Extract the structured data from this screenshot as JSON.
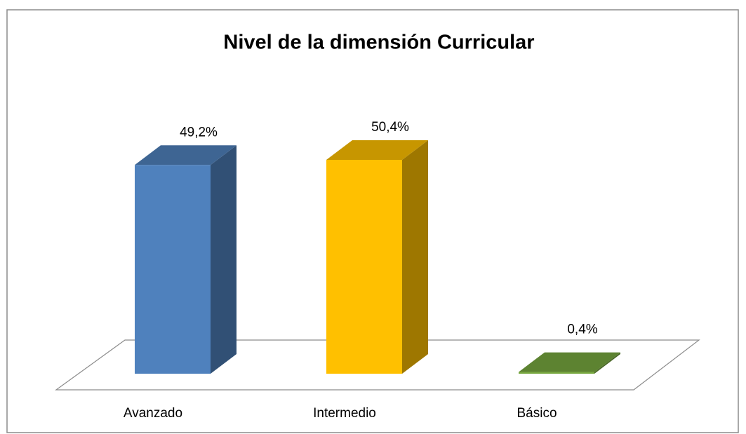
{
  "chart_data": {
    "type": "bar3d",
    "title": "Nivel de la dimensión Curricular",
    "categories": [
      "Avanzado",
      "Intermedio",
      "Básico"
    ],
    "values": [
      49.2,
      50.4,
      0.4
    ],
    "value_labels": [
      "49,2%",
      "50,4%",
      "0,4%"
    ],
    "colors": [
      "#4f81bd",
      "#ffc000",
      "#77a83f"
    ]
  }
}
